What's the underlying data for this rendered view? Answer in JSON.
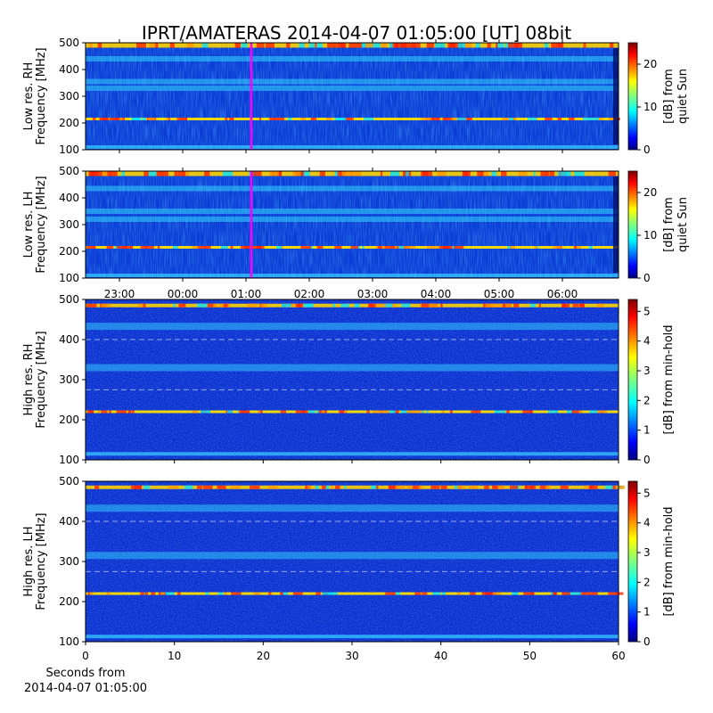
{
  "title": "IPRT/AMATERAS 2014-04-07 01:05:00 [UT]   08bit",
  "chart_data": [
    {
      "type": "heatmap",
      "panel": "low-res-rh",
      "ylabel_lines": [
        "Low res. RH",
        "Frequency [MHz]"
      ],
      "ylim": [
        100,
        500
      ],
      "yticks": [
        100,
        200,
        300,
        400,
        500
      ],
      "x_time_ticks": [
        "23:00",
        "00:00",
        "01:00",
        "02:00",
        "03:00",
        "04:00",
        "05:00",
        "06:00"
      ],
      "x_tick_labels_shown": false,
      "marker_line": {
        "time": "01:05",
        "color": "#ff00ff"
      },
      "colorbar": {
        "ticks": [
          0,
          10,
          20
        ],
        "range": [
          0,
          25
        ],
        "label_lines": [
          "[dB] from",
          "quiet Sun"
        ],
        "colormap": "jet"
      },
      "bright_bands_mhz": [
        490,
        440,
        355,
        330,
        215,
        110
      ]
    },
    {
      "type": "heatmap",
      "panel": "low-res-lh",
      "ylabel_lines": [
        "Low res. LH",
        "Frequency [MHz]"
      ],
      "ylim": [
        100,
        500
      ],
      "yticks": [
        100,
        200,
        300,
        400,
        500
      ],
      "x_time_ticks": [
        "23:00",
        "00:00",
        "01:00",
        "02:00",
        "03:00",
        "04:00",
        "05:00",
        "06:00"
      ],
      "x_tick_labels_shown": true,
      "marker_line": {
        "time": "01:05",
        "color": "#ff00ff"
      },
      "colorbar": {
        "ticks": [
          0,
          10,
          20
        ],
        "range": [
          0,
          25
        ],
        "label_lines": [
          "[dB] from",
          "quiet Sun"
        ],
        "colormap": "jet"
      },
      "bright_bands_mhz": [
        490,
        435,
        350,
        320,
        215,
        110
      ]
    },
    {
      "type": "heatmap",
      "panel": "high-res-rh",
      "ylabel_lines": [
        "High res. RH",
        "Frequency [MHz]"
      ],
      "ylim": [
        100,
        500
      ],
      "yticks": [
        100,
        200,
        300,
        400,
        500
      ],
      "xlim": [
        0,
        60
      ],
      "xticks": [
        0,
        10,
        20,
        30,
        40,
        50,
        60
      ],
      "x_tick_labels_shown": false,
      "colorbar": {
        "ticks": [
          0,
          1,
          2,
          3,
          4,
          5
        ],
        "range": [
          0,
          5.4
        ],
        "label": "[dB] from min-hold",
        "colormap": "jet"
      },
      "bright_bands_mhz": [
        485,
        433,
        330,
        220,
        115
      ]
    },
    {
      "type": "heatmap",
      "panel": "high-res-lh",
      "ylabel_lines": [
        "High res. LH",
        "Frequency [MHz]"
      ],
      "ylim": [
        100,
        500
      ],
      "yticks": [
        100,
        200,
        300,
        400,
        500
      ],
      "xlim": [
        0,
        60
      ],
      "xticks": [
        0,
        10,
        20,
        30,
        40,
        50,
        60
      ],
      "x_tick_labels_shown": true,
      "xlabel_lines": [
        "Seconds from",
        "2014-04-07 01:05:00"
      ],
      "colorbar": {
        "ticks": [
          0,
          1,
          2,
          3,
          4,
          5
        ],
        "range": [
          0,
          5.4
        ],
        "label": "[dB] from min-hold",
        "colormap": "jet"
      },
      "bright_bands_mhz": [
        485,
        433,
        315,
        220,
        113
      ]
    }
  ]
}
